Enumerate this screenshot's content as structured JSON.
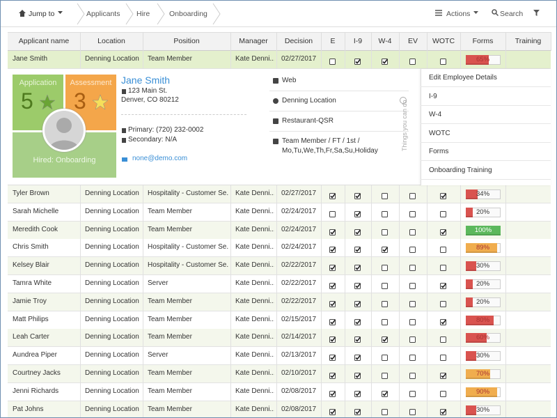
{
  "toolbar": {
    "jump_to": "Jump to",
    "breadcrumbs": [
      "Applicants",
      "Hire",
      "Onboarding"
    ],
    "actions": "Actions",
    "search": "Search"
  },
  "table": {
    "columns": [
      "Applicant name",
      "Location",
      "Position",
      "Manager",
      "Decision",
      "E",
      "I-9",
      "W-4",
      "EV",
      "WOTC",
      "Forms",
      "Training"
    ],
    "rows": [
      {
        "name": "Jane Smith",
        "location": "Denning Location",
        "position": "Team Member",
        "manager": "Kate Denni...",
        "decision": "02/27/2017",
        "checks": [
          false,
          true,
          true,
          false,
          false
        ],
        "forms": {
          "value": 65,
          "label": "65%"
        },
        "forms_color": "#d9534f"
      },
      {
        "name": "Tyler Brown",
        "location": "Denning Location",
        "position": "Hospitality - Customer Se...",
        "manager": "Kate Denni...",
        "decision": "02/27/2017",
        "checks": [
          true,
          true,
          false,
          false,
          true
        ],
        "forms": {
          "value": 34,
          "label": "34%"
        },
        "forms_color": "#d9534f"
      },
      {
        "name": "Sarah Michelle",
        "location": "Denning Location",
        "position": "Team Member",
        "manager": "Kate Denni...",
        "decision": "02/24/2017",
        "checks": [
          false,
          true,
          false,
          false,
          false
        ],
        "forms": {
          "value": 20,
          "label": "20%"
        },
        "forms_color": "#d9534f"
      },
      {
        "name": "Meredith Cook",
        "location": "Denning Location",
        "position": "Team Member",
        "manager": "Kate Denni...",
        "decision": "02/24/2017",
        "checks": [
          true,
          true,
          false,
          false,
          true
        ],
        "forms": {
          "value": 100,
          "label": "100%"
        },
        "forms_color": "#5cb85c"
      },
      {
        "name": "Chris Smith",
        "location": "Denning Location",
        "position": "Hospitality - Customer Se...",
        "manager": "Kate Denni...",
        "decision": "02/24/2017",
        "checks": [
          true,
          true,
          true,
          false,
          false
        ],
        "forms": {
          "value": 89,
          "label": "89%"
        },
        "forms_color": "#f0ad4e"
      },
      {
        "name": "Kelsey Blair",
        "location": "Denning Location",
        "position": "Hospitality - Customer Se...",
        "manager": "Kate Denni...",
        "decision": "02/22/2017",
        "checks": [
          true,
          true,
          false,
          false,
          false
        ],
        "forms": {
          "value": 30,
          "label": "30%"
        },
        "forms_color": "#d9534f"
      },
      {
        "name": "Tamra White",
        "location": "Denning Location",
        "position": "Server",
        "manager": "Kate Denni...",
        "decision": "02/22/2017",
        "checks": [
          true,
          true,
          false,
          false,
          true
        ],
        "forms": {
          "value": 20,
          "label": "20%"
        },
        "forms_color": "#d9534f"
      },
      {
        "name": "Jamie Troy",
        "location": "Denning Location",
        "position": "Team Member",
        "manager": "Kate Denni...",
        "decision": "02/22/2017",
        "checks": [
          true,
          true,
          false,
          false,
          false
        ],
        "forms": {
          "value": 20,
          "label": "20%"
        },
        "forms_color": "#d9534f"
      },
      {
        "name": "Matt Philips",
        "location": "Denning Location",
        "position": "Team Member",
        "manager": "Kate Denni...",
        "decision": "02/15/2017",
        "checks": [
          true,
          true,
          false,
          false,
          true
        ],
        "forms": {
          "value": 80,
          "label": "80%"
        },
        "forms_color": "#d9534f"
      },
      {
        "name": "Leah Carter",
        "location": "Denning Location",
        "position": "Team Member",
        "manager": "Kate Denni...",
        "decision": "02/14/2017",
        "checks": [
          true,
          true,
          true,
          false,
          false
        ],
        "forms": {
          "value": 60,
          "label": "60%"
        },
        "forms_color": "#d9534f"
      },
      {
        "name": "Aundrea Piper",
        "location": "Denning Location",
        "position": "Server",
        "manager": "Kate Denni...",
        "decision": "02/13/2017",
        "checks": [
          true,
          true,
          false,
          false,
          false
        ],
        "forms": {
          "value": 30,
          "label": "30%"
        },
        "forms_color": "#d9534f"
      },
      {
        "name": "Courtney Jacks",
        "location": "Denning Location",
        "position": "Team Member",
        "manager": "Kate Denni...",
        "decision": "02/10/2017",
        "checks": [
          true,
          true,
          false,
          false,
          true
        ],
        "forms": {
          "value": 70,
          "label": "70%"
        },
        "forms_color": "#f0ad4e"
      },
      {
        "name": "Jenni Richards",
        "location": "Denning Location",
        "position": "Team Member",
        "manager": "Kate Denni...",
        "decision": "02/08/2017",
        "checks": [
          true,
          true,
          true,
          false,
          false
        ],
        "forms": {
          "value": 90,
          "label": "90%"
        },
        "forms_color": "#f0ad4e"
      },
      {
        "name": "Pat Johns",
        "location": "Denning Location",
        "position": "Team Member",
        "manager": "Kate Denni...",
        "decision": "02/08/2017",
        "checks": [
          true,
          true,
          false,
          false,
          true
        ],
        "forms": {
          "value": 30,
          "label": "30%"
        },
        "forms_color": "#d9534f"
      }
    ]
  },
  "detail": {
    "application": {
      "label": "Application",
      "score": 5
    },
    "assessment": {
      "label": "Assessment",
      "score": 3
    },
    "status": "Hired: Onboarding",
    "name": "Jane Smith",
    "address": [
      "123 Main St.",
      "Denver, CO 80212"
    ],
    "primary": "Primary: (720) 232-0002",
    "secondary": "Secondary: N/A",
    "email": "none@demo.com",
    "info": [
      "Web",
      "Denning Location",
      "Restaurant-QSR",
      "Team Member / FT / 1st / Mo,Tu,We,Th,Fr,Sa,Su,Holiday"
    ],
    "side_label": "Things you can do",
    "actions": [
      "Edit Employee Details",
      "I-9",
      "W-4",
      "WOTC",
      "Forms",
      "Onboarding Training"
    ]
  }
}
